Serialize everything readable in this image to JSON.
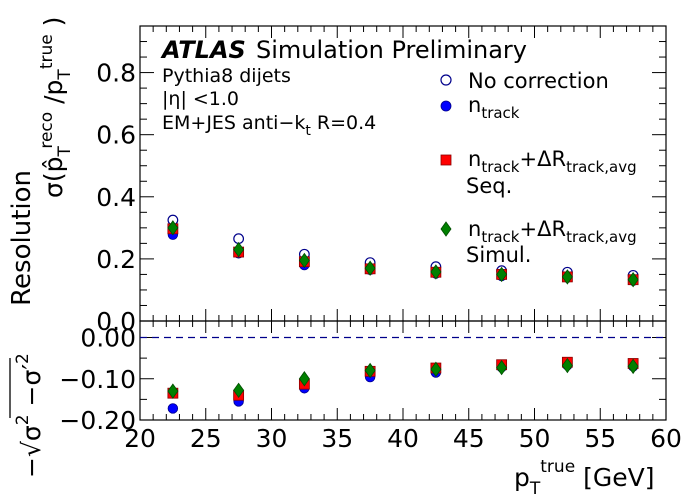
{
  "atlas_label": "ATLAS",
  "header_text": "Simulation Preliminary",
  "info_lines": [
    "Pythia8 dijets",
    "|η| <1.0",
    "EM+JES anti−k",
    "t",
    " R=0.4"
  ],
  "y_axis_top": {
    "main": "Resolution",
    "sigma": "σ(p̂",
    "T": "T",
    "reco": "reco",
    "slash": " /p",
    "true": "true",
    "close": " )"
  },
  "y_axis_bottom": {
    "minus": "−",
    "sqrt": "√",
    "sigma": "σ",
    "two": "2",
    "minus2": " −σ′",
    "two2": "2"
  },
  "x_axis": {
    "p": "p",
    "T": "T",
    "true": "true",
    "unit": "  [GeV]"
  },
  "colors": {
    "no_correction": "#00008b",
    "ntrack": "#0000ff",
    "ntrack_dr_seq": "#ff0000",
    "ntrack_dr_simul": "#008000",
    "reference_line": "#00008b"
  },
  "chart_data": [
    {
      "type": "scatter",
      "xlim": [
        20,
        60
      ],
      "ylim": [
        0,
        0.95
      ],
      "x": [
        22.5,
        27.5,
        32.5,
        37.5,
        42.5,
        47.5,
        52.5,
        57.5
      ],
      "y_ticks": [
        "0.0",
        "0.2",
        "0.4",
        "0.6",
        "0.8"
      ],
      "series": [
        {
          "name": "No correction",
          "marker": "open-circle",
          "values": [
            0.325,
            0.265,
            0.215,
            0.188,
            0.175,
            0.162,
            0.157,
            0.147
          ]
        },
        {
          "name": "n_track",
          "name_sub": "track",
          "marker": "filled-circle",
          "values": [
            0.278,
            0.218,
            0.18,
            0.165,
            0.153,
            0.145,
            0.14,
            0.13
          ]
        },
        {
          "name": "n_track+ΔR_track,avg Seq.",
          "name_sub": "track",
          "name_sub2": "track,avg",
          "name_line2": "Seq.",
          "marker": "square",
          "values": [
            0.297,
            0.222,
            0.191,
            0.168,
            0.157,
            0.15,
            0.142,
            0.133
          ]
        },
        {
          "name": "n_track+ΔR_track,avg Simul.",
          "name_sub": "track",
          "name_sub2": "track,avg",
          "name_line2": "Simul.",
          "marker": "diamond",
          "values": [
            0.3,
            0.23,
            0.195,
            0.17,
            0.158,
            0.15,
            0.142,
            0.133
          ]
        }
      ],
      "legend_prefix_n": "n",
      "legend_plus": "+ΔR"
    },
    {
      "type": "scatter",
      "xlim": [
        20,
        60
      ],
      "ylim": [
        -0.2,
        0.04
      ],
      "x_ticks": [
        "20",
        "25",
        "30",
        "35",
        "40",
        "45",
        "50",
        "55",
        "60"
      ],
      "y_ticks": [
        "0.00",
        "−0.10",
        "−0.20"
      ],
      "reference_line": 0,
      "series": [
        {
          "name": "n_track",
          "marker": "filled-circle",
          "values": [
            -0.172,
            -0.155,
            -0.123,
            -0.096,
            -0.085,
            -0.072,
            -0.067,
            -0.07
          ]
        },
        {
          "name": "n_track+ΔR_track,avg Seq.",
          "marker": "square",
          "values": [
            -0.135,
            -0.14,
            -0.113,
            -0.082,
            -0.074,
            -0.066,
            -0.06,
            -0.063
          ]
        },
        {
          "name": "n_track+ΔR_track,avg Simul.",
          "marker": "diamond",
          "values": [
            -0.13,
            -0.128,
            -0.1,
            -0.08,
            -0.077,
            -0.073,
            -0.068,
            -0.07
          ]
        }
      ]
    }
  ]
}
